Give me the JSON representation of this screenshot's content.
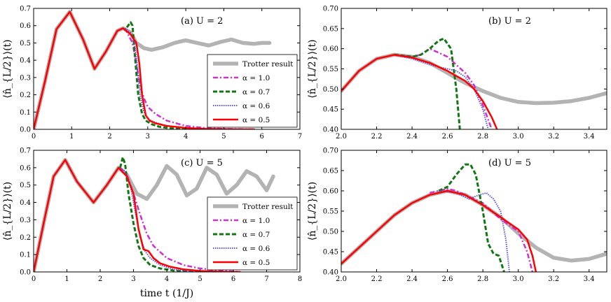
{
  "colors": {
    "trotter": "#b3b3b3",
    "alpha_1_0": "#cc33cc",
    "alpha_0_7": "#117711",
    "alpha_0_6": "#5555dd",
    "alpha_0_5": "#ff0000"
  },
  "legend_labels": [
    "Trotter result",
    "α = 1.0",
    "α = 0.7",
    "α = 0.6",
    "α = 0.5"
  ],
  "ylabel": "⟨n̂_{L/2}⟩(t)",
  "xlabel": "time t (1/J)",
  "chart_data": [
    {
      "id": "a",
      "type": "line",
      "annotation": "(a) U = 2",
      "xlim": [
        0,
        7
      ],
      "ylim": [
        0,
        0.7
      ],
      "xticks": [
        "0",
        "1",
        "2",
        "3",
        "4",
        "5",
        "6",
        "7"
      ],
      "yticks": [
        "0.0",
        "0.1",
        "0.2",
        "0.3",
        "0.4",
        "0.5",
        "0.6",
        "0.7"
      ],
      "legend": "lower-right",
      "series": [
        {
          "key": "trotter",
          "x": [
            0,
            0.3,
            0.6,
            0.95,
            1.3,
            1.6,
            1.9,
            2.2,
            2.35,
            2.55,
            2.7,
            2.9,
            3.1,
            3.4,
            3.7,
            4.0,
            4.3,
            4.6,
            4.9,
            5.2,
            5.5,
            5.8,
            6.0,
            6.2
          ],
          "y": [
            0,
            0.28,
            0.58,
            0.68,
            0.52,
            0.35,
            0.45,
            0.57,
            0.585,
            0.56,
            0.5,
            0.47,
            0.46,
            0.475,
            0.5,
            0.515,
            0.5,
            0.485,
            0.505,
            0.52,
            0.5,
            0.495,
            0.5,
            0.5
          ]
        },
        {
          "key": "alpha_1_0",
          "x": [
            2.4,
            2.6,
            2.7,
            2.8,
            2.9,
            3.0,
            3.2,
            3.5,
            4.0,
            4.5,
            5.0,
            5.5,
            5.8
          ],
          "y": [
            0.585,
            0.5,
            0.38,
            0.25,
            0.18,
            0.13,
            0.09,
            0.05,
            0.02,
            0.008,
            0.003,
            0.001,
            0
          ]
        },
        {
          "key": "alpha_0_7",
          "x": [
            2.45,
            2.55,
            2.6,
            2.68,
            2.75,
            2.85,
            2.95,
            3.1,
            3.3,
            3.6,
            4.0,
            4.5,
            5.0
          ],
          "y": [
            0.59,
            0.62,
            0.6,
            0.38,
            0.2,
            0.09,
            0.05,
            0.03,
            0.015,
            0.006,
            0.002,
            0.001,
            0
          ]
        },
        {
          "key": "alpha_0_6",
          "x": [
            2.4,
            2.55,
            2.65,
            2.72,
            2.8,
            2.9,
            3.0,
            3.2,
            3.5,
            4.0,
            4.5,
            5.0
          ],
          "y": [
            0.585,
            0.56,
            0.5,
            0.38,
            0.2,
            0.1,
            0.06,
            0.04,
            0.02,
            0.008,
            0.003,
            0
          ]
        },
        {
          "key": "alpha_0_5",
          "x": [
            0,
            0.3,
            0.6,
            0.95,
            1.3,
            1.6,
            1.9,
            2.2,
            2.35,
            2.55,
            2.7,
            2.78,
            2.85,
            2.95,
            3.05,
            3.2,
            3.5,
            4.0,
            4.5,
            5.0,
            5.5,
            5.8
          ],
          "y": [
            0,
            0.28,
            0.58,
            0.68,
            0.52,
            0.35,
            0.45,
            0.57,
            0.585,
            0.55,
            0.5,
            0.38,
            0.2,
            0.08,
            0.05,
            0.035,
            0.02,
            0.008,
            0.003,
            0.001,
            0,
            0
          ]
        }
      ]
    },
    {
      "id": "b",
      "type": "line",
      "annotation": "(b) U = 2",
      "xlim": [
        2.0,
        3.5
      ],
      "ylim": [
        0.4,
        0.7
      ],
      "xticks": [
        "2.0",
        "2.2",
        "2.4",
        "2.6",
        "2.8",
        "3.0",
        "3.2",
        "3.4"
      ],
      "yticks": [
        "0.40",
        "0.45",
        "0.50",
        "0.55",
        "0.60",
        "0.65",
        "0.70"
      ],
      "series": [
        {
          "key": "trotter",
          "x": [
            2.0,
            2.1,
            2.2,
            2.3,
            2.4,
            2.5,
            2.6,
            2.7,
            2.8,
            2.9,
            3.0,
            3.1,
            3.2,
            3.3,
            3.4,
            3.5
          ],
          "y": [
            0.495,
            0.545,
            0.575,
            0.585,
            0.58,
            0.565,
            0.54,
            0.515,
            0.495,
            0.478,
            0.468,
            0.465,
            0.466,
            0.47,
            0.478,
            0.49
          ]
        },
        {
          "key": "alpha_1_0",
          "x": [
            2.3,
            2.4,
            2.45,
            2.5,
            2.55,
            2.6,
            2.65,
            2.7,
            2.75,
            2.8,
            2.85
          ],
          "y": [
            0.585,
            0.58,
            0.585,
            0.6,
            0.59,
            0.58,
            0.56,
            0.54,
            0.51,
            0.46,
            0.4
          ]
        },
        {
          "key": "alpha_0_7",
          "x": [
            2.3,
            2.4,
            2.45,
            2.5,
            2.55,
            2.58,
            2.62,
            2.65,
            2.67
          ],
          "y": [
            0.585,
            0.58,
            0.585,
            0.6,
            0.62,
            0.625,
            0.6,
            0.5,
            0.4
          ]
        },
        {
          "key": "alpha_0_6",
          "x": [
            2.3,
            2.4,
            2.5,
            2.6,
            2.65,
            2.7,
            2.75,
            2.8,
            2.83
          ],
          "y": [
            0.585,
            0.575,
            0.56,
            0.55,
            0.545,
            0.53,
            0.5,
            0.45,
            0.4
          ]
        },
        {
          "key": "alpha_0_5",
          "x": [
            2.0,
            2.1,
            2.2,
            2.3,
            2.4,
            2.5,
            2.6,
            2.7,
            2.75,
            2.8,
            2.85,
            2.88
          ],
          "y": [
            0.495,
            0.545,
            0.575,
            0.585,
            0.578,
            0.565,
            0.545,
            0.52,
            0.5,
            0.47,
            0.43,
            0.4
          ]
        }
      ]
    },
    {
      "id": "c",
      "type": "line",
      "annotation": "(c) U = 5",
      "xlim": [
        0,
        8
      ],
      "ylim": [
        0,
        0.7
      ],
      "xticks": [
        "0",
        "1",
        "2",
        "3",
        "4",
        "5",
        "6",
        "7",
        "8"
      ],
      "yticks": [
        "0.0",
        "0.1",
        "0.2",
        "0.3",
        "0.4",
        "0.5",
        "0.6",
        "0.7"
      ],
      "legend": "lower-right",
      "series": [
        {
          "key": "trotter",
          "x": [
            0,
            0.3,
            0.6,
            0.95,
            1.3,
            1.8,
            2.2,
            2.55,
            2.8,
            3.1,
            3.4,
            3.7,
            4.0,
            4.3,
            4.6,
            4.9,
            5.2,
            5.5,
            5.8,
            6.1,
            6.4,
            6.7,
            7.0,
            7.2
          ],
          "y": [
            0,
            0.28,
            0.55,
            0.645,
            0.52,
            0.4,
            0.5,
            0.6,
            0.56,
            0.45,
            0.42,
            0.5,
            0.61,
            0.56,
            0.44,
            0.48,
            0.6,
            0.56,
            0.45,
            0.5,
            0.58,
            0.55,
            0.47,
            0.55
          ]
        },
        {
          "key": "alpha_1_0",
          "x": [
            2.6,
            2.8,
            3.0,
            3.2,
            3.4,
            3.6,
            4.0,
            4.5,
            5.0,
            5.5,
            6.0,
            6.2
          ],
          "y": [
            0.6,
            0.56,
            0.45,
            0.33,
            0.22,
            0.15,
            0.08,
            0.04,
            0.02,
            0.01,
            0.003,
            0
          ]
        },
        {
          "key": "alpha_0_7",
          "x": [
            2.6,
            2.68,
            2.75,
            2.85,
            3.0,
            3.15,
            3.3,
            3.5,
            3.8,
            4.2,
            4.6,
            5.0
          ],
          "y": [
            0.6,
            0.66,
            0.62,
            0.45,
            0.28,
            0.15,
            0.08,
            0.04,
            0.02,
            0.008,
            0.003,
            0
          ]
        },
        {
          "key": "alpha_0_6",
          "x": [
            2.6,
            2.75,
            2.9,
            3.05,
            3.2,
            3.35,
            3.5,
            3.8,
            4.2,
            4.6,
            5.0
          ],
          "y": [
            0.6,
            0.58,
            0.5,
            0.35,
            0.2,
            0.12,
            0.08,
            0.04,
            0.015,
            0.005,
            0
          ]
        },
        {
          "key": "alpha_0_5",
          "x": [
            0,
            0.3,
            0.6,
            0.95,
            1.3,
            1.8,
            2.2,
            2.55,
            2.8,
            3.0,
            3.15,
            3.3,
            3.45,
            3.6,
            3.8,
            4.1,
            4.5,
            5.0,
            5.5,
            6.0,
            6.2
          ],
          "y": [
            0,
            0.28,
            0.55,
            0.645,
            0.52,
            0.4,
            0.5,
            0.6,
            0.55,
            0.45,
            0.25,
            0.13,
            0.12,
            0.08,
            0.05,
            0.03,
            0.015,
            0.006,
            0.002,
            0,
            0
          ]
        }
      ]
    },
    {
      "id": "d",
      "type": "line",
      "annotation": "(d) U = 5",
      "xlim": [
        2.0,
        3.5
      ],
      "ylim": [
        0.4,
        0.7
      ],
      "xticks": [
        "2.0",
        "2.2",
        "2.4",
        "2.6",
        "2.8",
        "3.0",
        "3.2",
        "3.4"
      ],
      "yticks": [
        "0.40",
        "0.45",
        "0.50",
        "0.55",
        "0.60",
        "0.65",
        "0.70"
      ],
      "series": [
        {
          "key": "trotter",
          "x": [
            2.0,
            2.1,
            2.2,
            2.3,
            2.4,
            2.5,
            2.6,
            2.7,
            2.8,
            2.9,
            3.0,
            3.1,
            3.2,
            3.3,
            3.4,
            3.5
          ],
          "y": [
            0.42,
            0.46,
            0.5,
            0.54,
            0.57,
            0.59,
            0.6,
            0.59,
            0.565,
            0.535,
            0.495,
            0.46,
            0.435,
            0.428,
            0.432,
            0.445
          ]
        },
        {
          "key": "alpha_1_0",
          "x": [
            2.5,
            2.6,
            2.65,
            2.7,
            2.75,
            2.8,
            2.85,
            2.9,
            2.95,
            3.0,
            3.05,
            3.08
          ],
          "y": [
            0.595,
            0.605,
            0.6,
            0.59,
            0.58,
            0.57,
            0.55,
            0.53,
            0.515,
            0.5,
            0.45,
            0.4
          ]
        },
        {
          "key": "alpha_0_7",
          "x": [
            2.55,
            2.6,
            2.65,
            2.7,
            2.73,
            2.76,
            2.8,
            2.83,
            2.86,
            2.89,
            2.92
          ],
          "y": [
            0.6,
            0.61,
            0.64,
            0.665,
            0.665,
            0.64,
            0.55,
            0.47,
            0.445,
            0.44,
            0.4
          ]
        },
        {
          "key": "alpha_0_6",
          "x": [
            2.55,
            2.65,
            2.72,
            2.78,
            2.82,
            2.86,
            2.9,
            2.93,
            2.95
          ],
          "y": [
            0.6,
            0.595,
            0.58,
            0.59,
            0.595,
            0.58,
            0.55,
            0.48,
            0.4
          ]
        },
        {
          "key": "alpha_0_5",
          "x": [
            2.0,
            2.1,
            2.2,
            2.3,
            2.4,
            2.5,
            2.6,
            2.7,
            2.8,
            2.9,
            3.0,
            3.05,
            3.08,
            3.1
          ],
          "y": [
            0.42,
            0.46,
            0.5,
            0.54,
            0.57,
            0.59,
            0.6,
            0.59,
            0.565,
            0.535,
            0.505,
            0.48,
            0.44,
            0.4
          ]
        }
      ]
    }
  ]
}
